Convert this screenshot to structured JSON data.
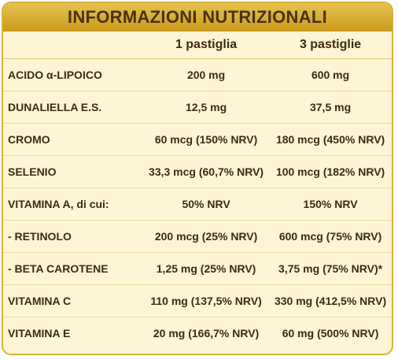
{
  "header": {
    "title": "INFORMAZIONI NUTRIZIONALI"
  },
  "table": {
    "columns": [
      "1 pastiglia",
      "3 pastiglie"
    ],
    "rows": [
      [
        "ACIDO α-LIPOICO",
        "200 mg",
        "600 mg"
      ],
      [
        "DUNALIELLA E.S.",
        "12,5 mg",
        "37,5 mg"
      ],
      [
        "CROMO",
        "60 mcg (150% NRV)",
        "180 mcg (450% NRV)"
      ],
      [
        "SELENIO",
        "33,3 mcg (60,7% NRV)",
        "100 mcg (182% NRV)"
      ],
      [
        "VITAMINA A, di cui:",
        "50% NRV",
        "150% NRV"
      ],
      [
        "- RETINOLO",
        "200 mcg (25% NRV)",
        "600 mcg (75% NRV)"
      ],
      [
        "- BETA CAROTENE",
        "1,25 mg (25% NRV)",
        "3,75 mg (75% NRV)*"
      ],
      [
        "VITAMINA C",
        "110 mg (137,5% NRV)",
        "330 mg (412,5% NRV)"
      ],
      [
        "VITAMINA E",
        "20 mg (166,7% NRV)",
        "60 mg (500% NRV)"
      ]
    ]
  }
}
